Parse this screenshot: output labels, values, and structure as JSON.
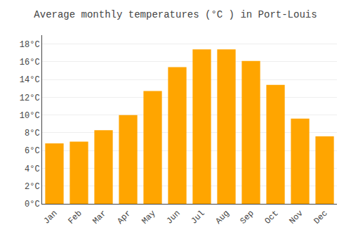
{
  "chart_data": {
    "type": "bar",
    "title": "Average monthly temperatures (°C ) in Port-Louis",
    "categories": [
      "Jan",
      "Feb",
      "Mar",
      "Apr",
      "May",
      "Jun",
      "Jul",
      "Aug",
      "Sep",
      "Oct",
      "Nov",
      "Dec"
    ],
    "values": [
      6.8,
      7.0,
      8.3,
      10.0,
      12.7,
      15.4,
      17.4,
      17.4,
      16.1,
      13.4,
      9.6,
      7.6
    ],
    "color": "#FFA500",
    "ylim": [
      0,
      19
    ],
    "yticks": [
      {
        "value": 0,
        "label": "0°C"
      },
      {
        "value": 2,
        "label": "2°C"
      },
      {
        "value": 4,
        "label": "4°C"
      },
      {
        "value": 6,
        "label": "6°C"
      },
      {
        "value": 8,
        "label": "8°C"
      },
      {
        "value": 10,
        "label": "10°C"
      },
      {
        "value": 12,
        "label": "12°C"
      },
      {
        "value": 14,
        "label": "14°C"
      },
      {
        "value": 16,
        "label": "16°C"
      },
      {
        "value": 18,
        "label": "18°C"
      }
    ],
    "grid": true
  }
}
